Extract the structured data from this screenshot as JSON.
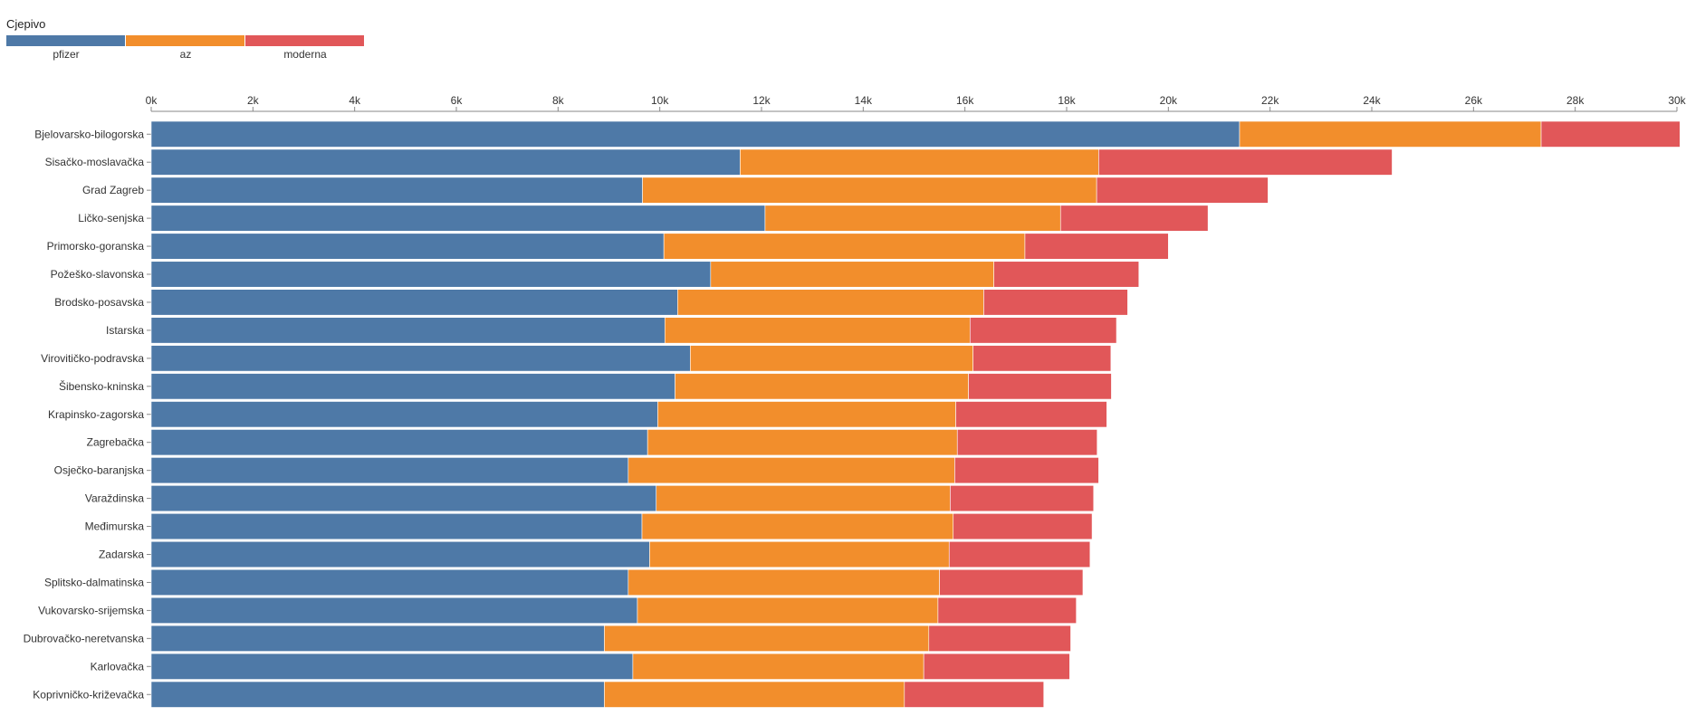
{
  "legend": {
    "title": "Cjepivo",
    "items": [
      {
        "label": "pfizer",
        "color": "#4e79a7"
      },
      {
        "label": "az",
        "color": "#f28e2c"
      },
      {
        "label": "moderna",
        "color": "#e15759"
      }
    ]
  },
  "chart_data": {
    "type": "bar",
    "orientation": "horizontal",
    "stacked": true,
    "categories": [
      "Bjelovarsko-bilogorska",
      "Sisačko-moslavačka",
      "Grad Zagreb",
      "Ličko-senjska",
      "Primorsko-goranska",
      "Požeško-slavonska",
      "Brodsko-posavska",
      "Istarska",
      "Virovitičko-podravska",
      "Šibensko-kninska",
      "Krapinsko-zagorska",
      "Zagrebačka",
      "Osječko-baranjska",
      "Varaždinska",
      "Međimurska",
      "Zadarska",
      "Splitsko-dalmatinska",
      "Vukovarsko-srijemska",
      "Dubrovačko-neretvanska",
      "Karlovačka",
      "Koprivničko-križevačka"
    ],
    "series": [
      {
        "name": "pfizer",
        "color": "#4e79a7",
        "values": [
          21400,
          11580,
          9660,
          12070,
          10080,
          11000,
          10350,
          10100,
          10600,
          10300,
          9960,
          9760,
          9380,
          9930,
          9650,
          9800,
          9380,
          9560,
          8910,
          9470,
          8910
        ]
      },
      {
        "name": "az",
        "color": "#f28e2c",
        "values": [
          5930,
          7050,
          8930,
          5810,
          7100,
          5570,
          6020,
          6000,
          5560,
          5770,
          5860,
          6090,
          6420,
          5780,
          6120,
          5890,
          6120,
          5910,
          6380,
          5720,
          5900
        ]
      },
      {
        "name": "moderna",
        "color": "#e15759",
        "values": [
          2730,
          5770,
          3370,
          2900,
          2820,
          2850,
          2830,
          2880,
          2710,
          2810,
          2970,
          2750,
          2830,
          2820,
          2730,
          2770,
          2820,
          2720,
          2790,
          2870,
          2740
        ]
      }
    ],
    "xlim": [
      0,
      30000
    ],
    "x_ticks": [
      "0k",
      "2k",
      "4k",
      "6k",
      "8k",
      "10k",
      "12k",
      "14k",
      "16k",
      "18k",
      "20k",
      "22k",
      "24k",
      "26k",
      "28k",
      "30k"
    ],
    "x_tick_values": [
      0,
      2000,
      4000,
      6000,
      8000,
      10000,
      12000,
      14000,
      16000,
      18000,
      20000,
      22000,
      24000,
      26000,
      28000,
      30000
    ],
    "x_axis_position": "top",
    "grid": false,
    "legend_position": "top-left"
  }
}
